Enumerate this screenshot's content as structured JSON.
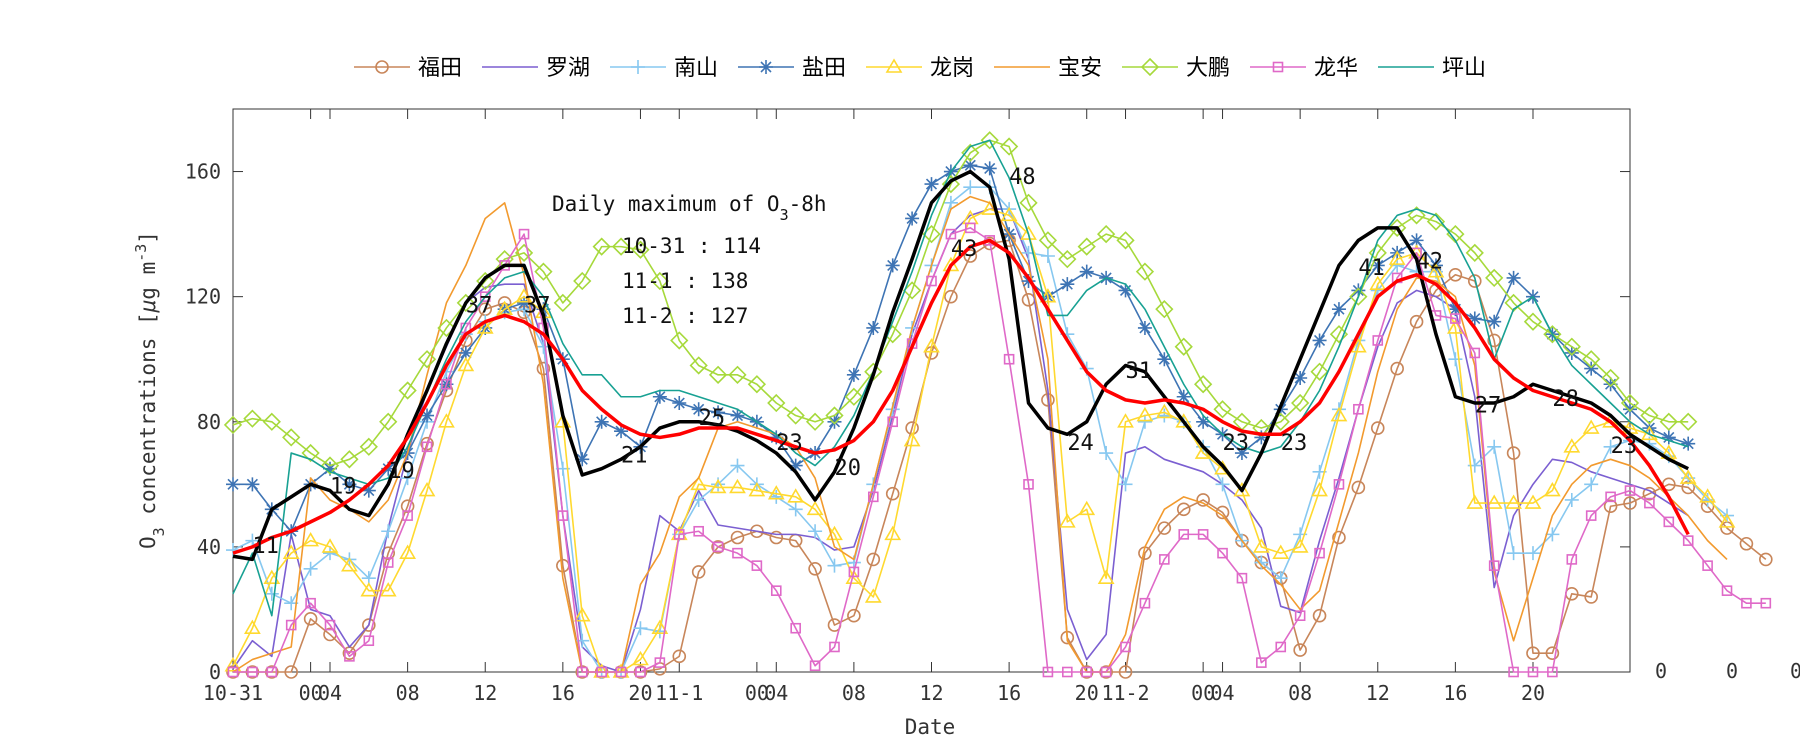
{
  "chart_data": {
    "type": "line",
    "xlabel": "Date",
    "ylabel": "O3 concentrations [μg m-3]",
    "ylabel_parts": {
      "o": "O",
      "sub": "3",
      "mid": " concentrations [",
      "mu": "μ",
      "g": "g m",
      "sup": "-3",
      "end": "]"
    },
    "x_range": [
      0,
      72
    ],
    "ylim": [
      0,
      180
    ],
    "y_ticks": [
      0,
      40,
      80,
      120,
      160
    ],
    "x_ticks": [
      {
        "x": 0,
        "label": "10-31"
      },
      {
        "x": 4,
        "label": "00"
      },
      {
        "x": 5,
        "label": "04"
      },
      {
        "x": 9,
        "label": "08"
      },
      {
        "x": 13,
        "label": "12"
      },
      {
        "x": 17,
        "label": "16"
      },
      {
        "x": 21,
        "label": "20"
      },
      {
        "x": 23,
        "label": "11-1"
      },
      {
        "x": 27,
        "label": "00"
      },
      {
        "x": 28,
        "label": "04"
      },
      {
        "x": 32,
        "label": "08"
      },
      {
        "x": 36,
        "label": "12"
      },
      {
        "x": 40,
        "label": "16"
      },
      {
        "x": 44,
        "label": "20"
      },
      {
        "x": 46,
        "label": "11-2"
      },
      {
        "x": 50,
        "label": "00"
      },
      {
        "x": 51,
        "label": "04"
      },
      {
        "x": 55,
        "label": "08"
      },
      {
        "x": 59,
        "label": "12"
      },
      {
        "x": 63,
        "label": "16"
      },
      {
        "x": 67,
        "label": "20"
      }
    ],
    "right_labels": [
      "0",
      "0",
      "0"
    ],
    "annotation": {
      "title": "Daily maximum of O",
      "title_sub": "3",
      "title_end": "-8h",
      "lines": [
        "10-31 : 114",
        "11-1 : 138",
        "11-2 : 127"
      ]
    },
    "peak_labels": [
      {
        "x": 1,
        "y": 38,
        "text": "11"
      },
      {
        "x": 5,
        "y": 57,
        "text": "19"
      },
      {
        "x": 8,
        "y": 62,
        "text": "19"
      },
      {
        "x": 12,
        "y": 115,
        "text": "37"
      },
      {
        "x": 15,
        "y": 115,
        "text": "37"
      },
      {
        "x": 20,
        "y": 67,
        "text": "21"
      },
      {
        "x": 24,
        "y": 79,
        "text": "25"
      },
      {
        "x": 28,
        "y": 71,
        "text": "23"
      },
      {
        "x": 31,
        "y": 63,
        "text": "20"
      },
      {
        "x": 37,
        "y": 133,
        "text": "43"
      },
      {
        "x": 40,
        "y": 156,
        "text": "48"
      },
      {
        "x": 43,
        "y": 71,
        "text": "24"
      },
      {
        "x": 46,
        "y": 94,
        "text": "31"
      },
      {
        "x": 51,
        "y": 71,
        "text": "23"
      },
      {
        "x": 54,
        "y": 71,
        "text": "23"
      },
      {
        "x": 58,
        "y": 127,
        "text": "41"
      },
      {
        "x": 61,
        "y": 129,
        "text": "42"
      },
      {
        "x": 64,
        "y": 83,
        "text": "27"
      },
      {
        "x": 68,
        "y": 85,
        "text": "28"
      },
      {
        "x": 71,
        "y": 70,
        "text": "23"
      }
    ],
    "legend_placement": "top-center",
    "series": [
      {
        "name": "福田",
        "color": "#c8865a",
        "marker": "circle",
        "values": [
          0,
          0,
          0,
          0,
          17,
          12,
          6,
          15,
          38,
          53,
          73,
          90,
          106,
          116,
          118,
          115,
          97,
          34,
          0,
          0,
          0,
          0,
          1,
          5,
          32,
          40,
          43,
          45,
          43,
          42,
          33,
          15,
          18,
          36,
          57,
          78,
          102,
          120,
          133,
          137,
          138,
          119,
          87,
          11,
          0,
          0,
          0,
          38,
          46,
          52,
          55,
          51,
          42,
          35,
          30,
          7,
          18,
          43,
          59,
          78,
          97,
          112,
          122,
          127,
          125,
          106,
          70,
          6,
          6,
          25,
          24,
          53,
          54,
          57,
          60,
          59,
          53,
          46,
          41,
          36
        ]
      },
      {
        "name": "罗湖",
        "color": "#7b5fd1",
        "marker": "none",
        "values": [
          1,
          10,
          5,
          44,
          20,
          18,
          8,
          15,
          46,
          70,
          90,
          104,
          118,
          123,
          124,
          124,
          105,
          50,
          8,
          2,
          0,
          20,
          50,
          45,
          58,
          47,
          46,
          45,
          44,
          44,
          43,
          39,
          40,
          58,
          82,
          108,
          125,
          140,
          146,
          148,
          148,
          132,
          90,
          20,
          4,
          12,
          70,
          72,
          68,
          66,
          64,
          60,
          55,
          46,
          21,
          19,
          42,
          62,
          84,
          104,
          118,
          122,
          120,
          116,
          88,
          27,
          50,
          60,
          68,
          67,
          64,
          62,
          60,
          58,
          54,
          50
        ]
      },
      {
        "name": "南山",
        "color": "#87c8f0",
        "marker": "plus",
        "values": [
          39,
          42,
          25,
          22,
          33,
          38,
          36,
          30,
          45,
          62,
          80,
          96,
          108,
          112,
          115,
          116,
          104,
          65,
          10,
          0,
          0,
          14,
          13,
          44,
          55,
          60,
          66,
          60,
          56,
          52,
          45,
          34,
          35,
          60,
          84,
          110,
          130,
          150,
          155,
          155,
          148,
          134,
          133,
          108,
          97,
          70,
          60,
          80,
          82,
          80,
          72,
          60,
          42,
          35,
          30,
          44,
          64,
          84,
          106,
          122,
          130,
          128,
          128,
          100,
          66,
          72,
          38,
          38,
          44,
          55,
          60,
          72,
          74,
          73,
          69,
          62,
          55,
          50
        ]
      },
      {
        "name": "盐田",
        "color": "#3e74b4",
        "marker": "star",
        "values": [
          60,
          60,
          52,
          45,
          60,
          65,
          60,
          58,
          65,
          70,
          82,
          92,
          102,
          110,
          116,
          118,
          116,
          100,
          68,
          80,
          77,
          72,
          88,
          86,
          84,
          83,
          82,
          80,
          75,
          66,
          70,
          80,
          95,
          110,
          130,
          145,
          156,
          160,
          162,
          161,
          140,
          125,
          120,
          124,
          128,
          126,
          122,
          110,
          100,
          88,
          80,
          76,
          70,
          75,
          84,
          94,
          106,
          116,
          122,
          130,
          134,
          138,
          130,
          116,
          113,
          112,
          126,
          120,
          108,
          102,
          97,
          92,
          84,
          78,
          75,
          73
        ]
      },
      {
        "name": "龙岗",
        "color": "#ffd92f",
        "marker": "triangle",
        "values": [
          2,
          14,
          30,
          38,
          42,
          40,
          34,
          26,
          26,
          38,
          58,
          80,
          98,
          110,
          116,
          120,
          115,
          80,
          18,
          0,
          0,
          4,
          14,
          44,
          60,
          59,
          59,
          58,
          57,
          56,
          52,
          44,
          30,
          24,
          44,
          74,
          104,
          130,
          145,
          148,
          146,
          140,
          120,
          48,
          52,
          30,
          80,
          82,
          83,
          80,
          70,
          65,
          58,
          40,
          38,
          40,
          58,
          82,
          104,
          124,
          132,
          134,
          128,
          110,
          54,
          54,
          54,
          54,
          58,
          72,
          78,
          80,
          78,
          76,
          70,
          62,
          56,
          48
        ]
      },
      {
        "name": "宝安",
        "color": "#f29a2e",
        "marker": "none",
        "values": [
          0,
          4,
          6,
          8,
          62,
          55,
          52,
          48,
          55,
          70,
          95,
          118,
          130,
          145,
          150,
          127,
          92,
          30,
          0,
          0,
          0,
          28,
          38,
          56,
          62,
          78,
          80,
          78,
          76,
          72,
          62,
          40,
          36,
          60,
          85,
          110,
          130,
          148,
          152,
          150,
          140,
          130,
          100,
          10,
          0,
          0,
          12,
          40,
          52,
          56,
          54,
          50,
          42,
          34,
          28,
          20,
          26,
          48,
          70,
          96,
          116,
          126,
          125,
          120,
          98,
          32,
          10,
          30,
          50,
          60,
          66,
          68,
          66,
          62,
          56,
          50,
          42,
          36
        ]
      },
      {
        "name": "大鹏",
        "color": "#a6d93b",
        "marker": "diamond",
        "values": [
          79,
          81,
          80,
          75,
          70,
          66,
          68,
          72,
          80,
          90,
          100,
          110,
          118,
          125,
          132,
          134,
          128,
          118,
          125,
          136,
          136,
          135,
          125,
          106,
          98,
          95,
          95,
          92,
          86,
          82,
          80,
          82,
          88,
          96,
          108,
          122,
          140,
          156,
          166,
          170,
          168,
          150,
          138,
          132,
          136,
          140,
          138,
          128,
          116,
          104,
          92,
          84,
          80,
          78,
          80,
          86,
          96,
          108,
          120,
          134,
          142,
          146,
          144,
          140,
          134,
          126,
          118,
          112,
          108,
          104,
          100,
          94,
          86,
          82,
          80,
          80
        ]
      },
      {
        "name": "龙华",
        "color": "#df69c8",
        "marker": "square",
        "values": [
          0,
          0,
          0,
          15,
          22,
          15,
          5,
          10,
          35,
          50,
          72,
          92,
          110,
          120,
          130,
          140,
          110,
          50,
          0,
          0,
          0,
          0,
          3,
          44,
          45,
          40,
          38,
          34,
          26,
          14,
          2,
          8,
          32,
          56,
          80,
          105,
          125,
          140,
          142,
          138,
          100,
          60,
          0,
          0,
          0,
          0,
          8,
          22,
          36,
          44,
          44,
          38,
          30,
          3,
          8,
          18,
          38,
          60,
          84,
          106,
          126,
          134,
          114,
          113,
          102,
          34,
          0,
          0,
          0,
          36,
          50,
          56,
          58,
          54,
          48,
          42,
          34,
          26,
          22,
          22
        ]
      },
      {
        "name": "坪山",
        "color": "#18a193",
        "marker": "none",
        "values": [
          25,
          38,
          18,
          70,
          68,
          64,
          62,
          60,
          62,
          72,
          86,
          100,
          112,
          120,
          126,
          128,
          120,
          105,
          95,
          95,
          88,
          88,
          90,
          90,
          88,
          86,
          84,
          80,
          76,
          70,
          66,
          72,
          82,
          96,
          112,
          128,
          146,
          160,
          168,
          170,
          158,
          140,
          114,
          114,
          122,
          126,
          124,
          116,
          104,
          92,
          82,
          76,
          72,
          70,
          72,
          80,
          90,
          104,
          120,
          138,
          146,
          148,
          146,
          138,
          126,
          100,
          116,
          120,
          108,
          98,
          92,
          86,
          80,
          76,
          74,
          72
        ]
      },
      {
        "name": "",
        "color": "#000000",
        "marker": "none",
        "values": [
          37,
          36,
          52,
          56,
          60,
          58,
          52,
          50,
          60,
          76,
          90,
          105,
          118,
          126,
          130,
          130,
          114,
          82,
          63,
          65,
          68,
          72,
          78,
          80,
          80,
          79,
          77,
          74,
          70,
          64,
          55,
          64,
          78,
          95,
          115,
          132,
          150,
          157,
          160,
          155,
          132,
          86,
          78,
          76,
          80,
          92,
          98,
          96,
          88,
          80,
          72,
          66,
          58,
          70,
          85,
          100,
          115,
          130,
          138,
          142,
          142,
          132,
          108,
          88,
          86,
          86,
          88,
          92,
          90,
          88,
          86,
          82,
          76,
          72,
          68,
          65
        ]
      },
      {
        "name": "",
        "color": "#ff0000",
        "marker": "none",
        "values": [
          38,
          40,
          43,
          45,
          48,
          51,
          55,
          60,
          66,
          75,
          86,
          98,
          108,
          112,
          114,
          112,
          108,
          100,
          90,
          84,
          79,
          76,
          75,
          76,
          78,
          78,
          78,
          76,
          74,
          72,
          70,
          71,
          74,
          80,
          90,
          104,
          118,
          130,
          136,
          138,
          134,
          126,
          116,
          106,
          96,
          90,
          87,
          86,
          87,
          86,
          84,
          80,
          77,
          76,
          76,
          80,
          86,
          96,
          108,
          120,
          125,
          127,
          124,
          118,
          110,
          100,
          94,
          90,
          88,
          86,
          84,
          80,
          74,
          66,
          56,
          44
        ]
      }
    ]
  }
}
